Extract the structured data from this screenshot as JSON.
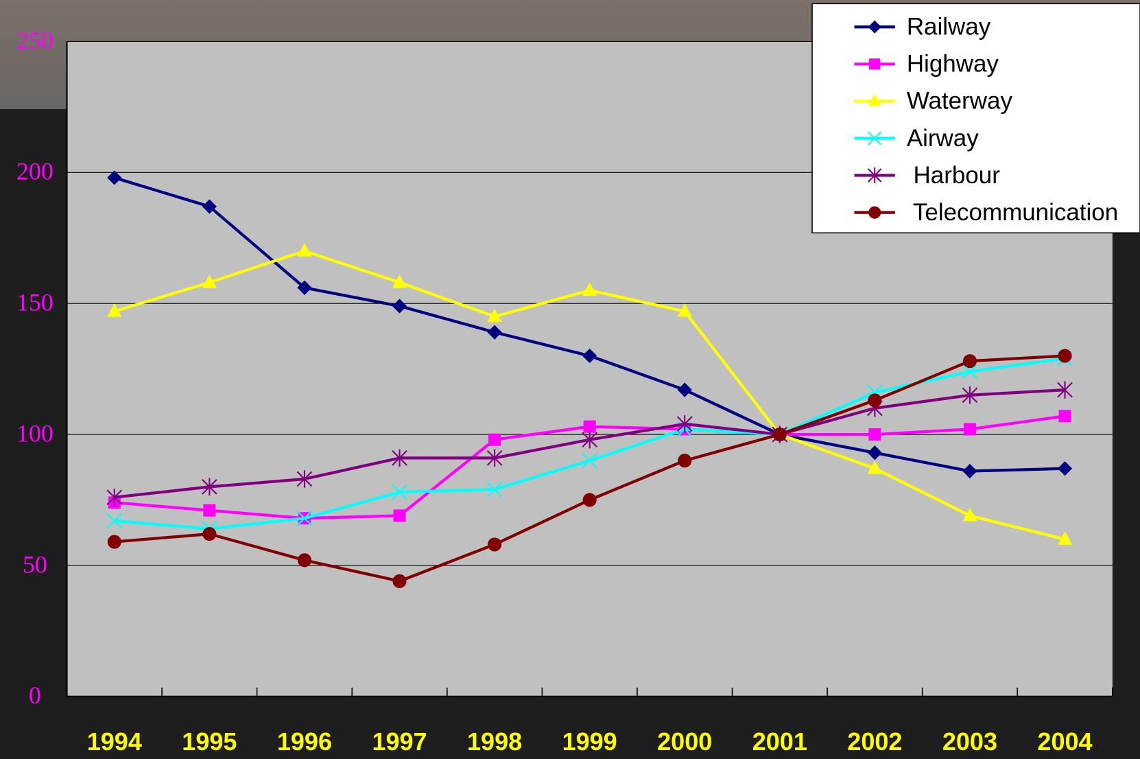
{
  "chart_data": {
    "type": "line",
    "categories": [
      "1994",
      "1995",
      "1996",
      "1997",
      "1998",
      "1999",
      "2000",
      "2001",
      "2002",
      "2003",
      "2004"
    ],
    "series": [
      {
        "name": "Railway",
        "color": "#000080",
        "marker": "diamond",
        "values": [
          198,
          187,
          156,
          149,
          139,
          130,
          117,
          100,
          93,
          86,
          87
        ]
      },
      {
        "name": "Highway",
        "color": "#ff00ff",
        "marker": "square",
        "values": [
          74,
          71,
          68,
          69,
          98,
          103,
          102,
          100,
          100,
          102,
          107
        ]
      },
      {
        "name": "Waterway",
        "color": "#ffff00",
        "marker": "triangle",
        "values": [
          147,
          158,
          170,
          158,
          145,
          155,
          147,
          100,
          87,
          69,
          60
        ]
      },
      {
        "name": "Airway",
        "color": "#00ffff",
        "marker": "x",
        "values": [
          67,
          64,
          68,
          78,
          79,
          90,
          102,
          100,
          116,
          124,
          129
        ]
      },
      {
        "name": " Harbour",
        "color": "#800080",
        "marker": "asterisk",
        "values": [
          76,
          80,
          83,
          91,
          91,
          98,
          104,
          100,
          110,
          115,
          117
        ]
      },
      {
        "name": " Telecommunication",
        "color": "#800000",
        "marker": "circle",
        "values": [
          59,
          62,
          52,
          44,
          58,
          75,
          90,
          100,
          113,
          128,
          130
        ]
      }
    ],
    "ylim": [
      0,
      250
    ],
    "yticks": [
      0,
      50,
      100,
      150,
      200,
      250
    ],
    "grid": true,
    "legend": "upper right"
  }
}
